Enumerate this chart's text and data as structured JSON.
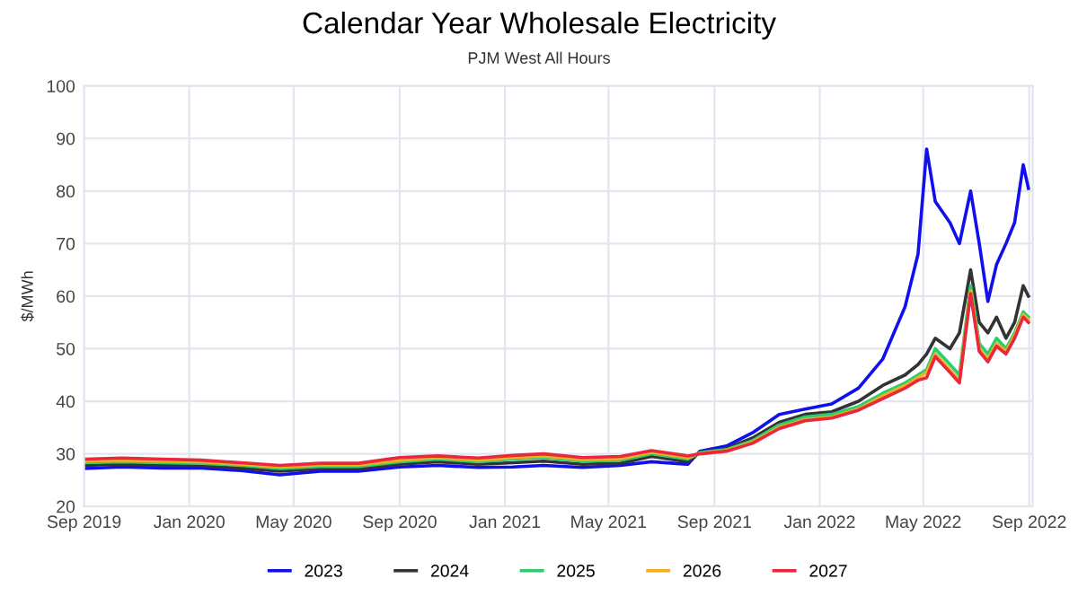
{
  "chart_data": {
    "type": "line",
    "title": "Calendar Year Wholesale Electricity",
    "subtitle": "PJM West All Hours",
    "ylabel": "$/MWh",
    "x": [
      "2019-09-01",
      "2019-10-15",
      "2019-12-01",
      "2020-01-15",
      "2020-03-01",
      "2020-04-15",
      "2020-06-01",
      "2020-07-15",
      "2020-09-01",
      "2020-10-15",
      "2020-12-01",
      "2021-01-10",
      "2021-02-15",
      "2021-04-01",
      "2021-05-15",
      "2021-06-20",
      "2021-08-01",
      "2021-08-15",
      "2021-09-15",
      "2021-10-15",
      "2021-11-15",
      "2021-12-15",
      "2022-01-15",
      "2022-02-15",
      "2022-03-15",
      "2022-04-10",
      "2022-04-25",
      "2022-05-05",
      "2022-05-15",
      "2022-06-01",
      "2022-06-12",
      "2022-06-25",
      "2022-07-05",
      "2022-07-15",
      "2022-07-25",
      "2022-08-05",
      "2022-08-15",
      "2022-08-25",
      "2022-08-31"
    ],
    "series": [
      {
        "name": "2023",
        "color": "#1010ee",
        "values": [
          27.2,
          27.5,
          27.3,
          27.3,
          26.8,
          26.0,
          26.7,
          26.7,
          27.5,
          27.8,
          27.4,
          27.5,
          27.8,
          27.4,
          27.8,
          28.5,
          28.0,
          30.5,
          31.5,
          34.0,
          37.5,
          38.5,
          39.5,
          42.5,
          48.0,
          58.0,
          68.0,
          88.0,
          78.0,
          74.0,
          70.0,
          80.0,
          70.0,
          59.0,
          66.0,
          70.0,
          74.0,
          85.0,
          80.5
        ]
      },
      {
        "name": "2024",
        "color": "#333333",
        "values": [
          27.8,
          28.0,
          27.8,
          27.8,
          27.3,
          26.7,
          27.2,
          27.2,
          28.0,
          28.5,
          28.0,
          28.3,
          28.6,
          28.0,
          28.2,
          29.5,
          28.5,
          30.3,
          31.0,
          33.0,
          36.0,
          37.5,
          38.0,
          40.0,
          43.0,
          45.0,
          47.0,
          49.0,
          52.0,
          50.0,
          53.0,
          65.0,
          55.0,
          53.0,
          56.0,
          52.0,
          55.0,
          62.0,
          60.0
        ]
      },
      {
        "name": "2025",
        "color": "#2ecc71",
        "values": [
          28.3,
          28.5,
          28.3,
          28.2,
          27.8,
          27.2,
          27.6,
          27.6,
          28.5,
          29.0,
          28.5,
          29.0,
          29.3,
          28.6,
          28.8,
          30.0,
          29.0,
          30.2,
          30.8,
          32.5,
          35.5,
          37.0,
          37.5,
          39.0,
          41.5,
          43.5,
          45.0,
          46.0,
          50.0,
          47.0,
          45.0,
          62.0,
          51.0,
          49.0,
          52.0,
          50.0,
          53.0,
          57.0,
          56.0
        ]
      },
      {
        "name": "2026",
        "color": "#f0b020",
        "values": [
          28.6,
          28.8,
          28.6,
          28.5,
          28.0,
          27.5,
          27.9,
          27.9,
          28.8,
          29.3,
          28.8,
          29.3,
          29.6,
          28.9,
          29.1,
          30.3,
          29.3,
          30.1,
          30.6,
          32.2,
          35.0,
          36.5,
          37.0,
          38.5,
          41.0,
          43.0,
          44.5,
          45.5,
          49.0,
          46.0,
          44.0,
          61.0,
          50.0,
          48.0,
          51.0,
          49.5,
          52.5,
          56.5,
          55.5
        ]
      },
      {
        "name": "2027",
        "color": "#e8283c",
        "values": [
          29.0,
          29.2,
          29.0,
          28.8,
          28.3,
          27.8,
          28.2,
          28.2,
          29.3,
          29.6,
          29.2,
          29.7,
          30.0,
          29.3,
          29.5,
          30.6,
          29.6,
          30.0,
          30.5,
          32.0,
          34.8,
          36.3,
          36.8,
          38.3,
          40.5,
          42.5,
          44.0,
          44.5,
          48.5,
          45.5,
          43.5,
          60.5,
          49.5,
          47.5,
          50.5,
          49.0,
          52.0,
          56.0,
          55.0
        ]
      }
    ],
    "xlim": [
      "2019-09-01",
      "2022-09-05"
    ],
    "xticks": [
      {
        "value": "2019-09-01",
        "label": "Sep 2019"
      },
      {
        "value": "2020-01-01",
        "label": "Jan 2020"
      },
      {
        "value": "2020-05-01",
        "label": "May 2020"
      },
      {
        "value": "2020-09-01",
        "label": "Sep 2020"
      },
      {
        "value": "2021-01-01",
        "label": "Jan 2021"
      },
      {
        "value": "2021-05-01",
        "label": "May 2021"
      },
      {
        "value": "2021-09-01",
        "label": "Sep 2021"
      },
      {
        "value": "2022-01-01",
        "label": "Jan 2022"
      },
      {
        "value": "2022-05-01",
        "label": "May 2022"
      },
      {
        "value": "2022-09-01",
        "label": "Sep 2022"
      }
    ],
    "ylim": [
      20,
      100
    ],
    "yticks": [
      20,
      30,
      40,
      50,
      60,
      70,
      80,
      90,
      100
    ],
    "grid": true,
    "legend": "bottom",
    "marker": "none",
    "line_style": "solid"
  }
}
